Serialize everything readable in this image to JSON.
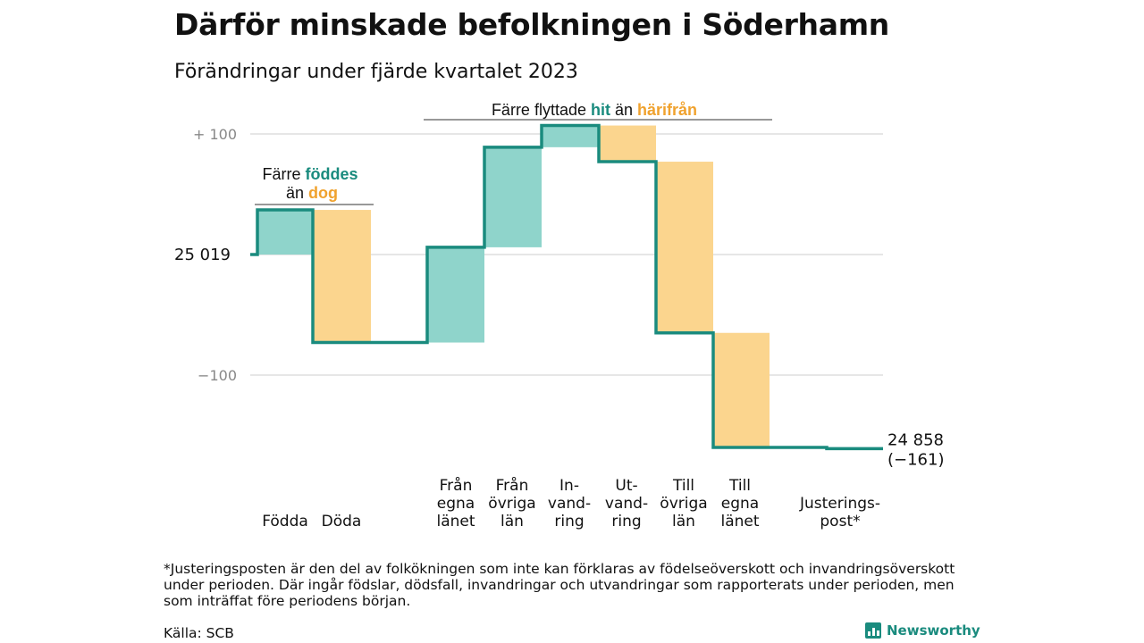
{
  "title": "Därför minskade befolkningen i Söderhamn",
  "subtitle": "Förändringar under fjärde kvartalet 2023",
  "chart_data": {
    "type": "waterfall",
    "start_value": 25019,
    "start_label": "25  019",
    "end_value": 24858,
    "end_label": [
      "24 858",
      "(−161)"
    ],
    "ylim": [
      -165,
      105
    ],
    "yticks": [
      {
        "value": 100,
        "label": "+  100"
      },
      {
        "value": -100,
        "label": "−100"
      }
    ],
    "steps": [
      {
        "label": [
          "Födda"
        ],
        "change": 37,
        "kind": "in"
      },
      {
        "label": [
          "Döda"
        ],
        "change": -110,
        "kind": "out"
      },
      {
        "label": [
          "Från",
          "egna",
          "länet"
        ],
        "change": 79,
        "kind": "in"
      },
      {
        "label": [
          "Från",
          "övriga",
          "län"
        ],
        "change": 83,
        "kind": "in"
      },
      {
        "label": [
          "In-",
          "vand-",
          "ring"
        ],
        "change": 18,
        "kind": "in"
      },
      {
        "label": [
          "Ut-",
          "vand-",
          "ring"
        ],
        "change": -30,
        "kind": "out"
      },
      {
        "label": [
          "Till",
          "övriga",
          "län"
        ],
        "change": -142,
        "kind": "out"
      },
      {
        "label": [
          "Till",
          "egna",
          "länet"
        ],
        "change": -95,
        "kind": "out"
      },
      {
        "label": [
          "Justerings-",
          "post*"
        ],
        "change": -1,
        "kind": "adjust"
      }
    ],
    "annotations": [
      {
        "pre": "Färre ",
        "hit": "föddes",
        "line2_pre": "än ",
        "out": "dog"
      },
      {
        "pre": "Färre flyttade ",
        "hit": "hit",
        "mid": " än ",
        "out": "härifrån"
      }
    ],
    "colors": {
      "in": "#8fd4cb",
      "out": "#fbd58e",
      "line": "#1a8b7e",
      "in_text": "#1a8b7e",
      "out_text": "#f0a22e",
      "grid": "#dddddd",
      "tick_text": "#888888"
    }
  },
  "footnote": "*Justeringsposten är den del av folkökningen som inte kan förklaras av födelseöverskott och invandringsöverskott under perioden. Där ingår födslar, dödsfall, invandringar och utvandringar som rapporterats under perioden, men som inträffat före periodens början.",
  "source": "Källa: SCB",
  "logo": "Newsworthy"
}
